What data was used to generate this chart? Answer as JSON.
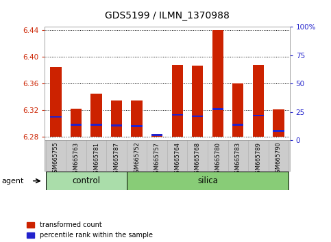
{
  "title": "GDS5199 / ILMN_1370988",
  "samples": [
    "GSM665755",
    "GSM665763",
    "GSM665781",
    "GSM665787",
    "GSM665752",
    "GSM665757",
    "GSM665764",
    "GSM665768",
    "GSM665780",
    "GSM665783",
    "GSM665789",
    "GSM665790"
  ],
  "groups": [
    "control",
    "control",
    "control",
    "control",
    "silica",
    "silica",
    "silica",
    "silica",
    "silica",
    "silica",
    "silica",
    "silica"
  ],
  "red_values": [
    6.385,
    6.322,
    6.345,
    6.335,
    6.335,
    6.282,
    6.388,
    6.387,
    6.44,
    6.36,
    6.388,
    6.321
  ],
  "blue_values": [
    6.31,
    6.298,
    6.298,
    6.297,
    6.296,
    6.283,
    6.313,
    6.311,
    6.322,
    6.298,
    6.312,
    6.289
  ],
  "baseline": 6.28,
  "ylim_left": [
    6.275,
    6.445
  ],
  "ylim_right": [
    0,
    100
  ],
  "yticks_left": [
    6.28,
    6.32,
    6.36,
    6.4,
    6.44
  ],
  "yticks_right": [
    0,
    25,
    50,
    75,
    100
  ],
  "ytick_labels_right": [
    "0",
    "25",
    "50",
    "75",
    "100%"
  ],
  "bar_color": "#cc2200",
  "blue_color": "#2222cc",
  "bar_width": 0.55,
  "grid_color": "#000000",
  "control_color": "#aaddaa",
  "silica_color": "#88cc77",
  "agent_label": "agent",
  "control_label": "control",
  "silica_label": "silica",
  "legend_red": "transformed count",
  "legend_blue": "percentile rank within the sample",
  "bg_color": "#ffffff",
  "plot_bg": "#ffffff",
  "left_tick_color": "#cc2200",
  "right_tick_color": "#2222cc",
  "title_color": "#000000",
  "gray_box_color": "#cccccc"
}
